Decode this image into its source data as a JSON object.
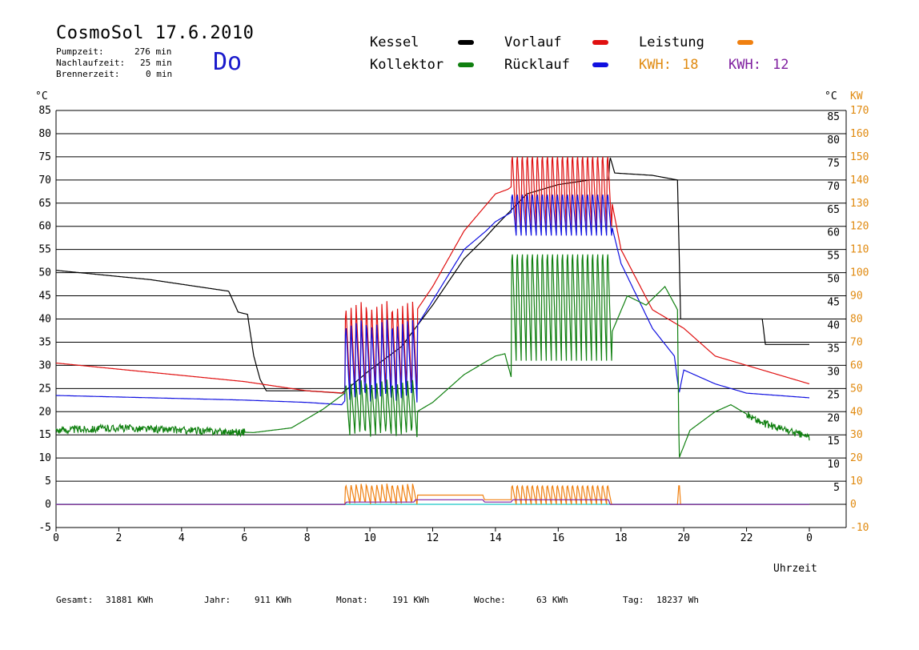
{
  "header": {
    "title": "CosmoSol 17.6.2010",
    "weekday": "Do",
    "stats": [
      {
        "label": "Pumpzeit:",
        "value": "276 min"
      },
      {
        "label": "Nachlaufzeit:",
        "value": "25 min"
      },
      {
        "label": "Brennerzeit:",
        "value": "0 min"
      }
    ]
  },
  "legend": {
    "kessel": {
      "label": "Kessel",
      "color": "#000000"
    },
    "vorlauf": {
      "label": "Vorlauf",
      "color": "#e01010"
    },
    "leistung": {
      "label": "Leistung",
      "color": "#f08010"
    },
    "kollektor": {
      "label": "Kollektor",
      "color": "#108010"
    },
    "ruecklauf": {
      "label": "Rücklauf",
      "color": "#1010e0"
    },
    "kwh_orange": {
      "label": "KWH:",
      "value": "18",
      "color": "#e08a10"
    },
    "kwh_purple": {
      "label": "KWH:",
      "value": "12",
      "color": "#8020a0"
    }
  },
  "footer": [
    {
      "label": "Gesamt:",
      "value": "31881 KWh"
    },
    {
      "label": "Jahr:",
      "value": "911 KWh"
    },
    {
      "label": "Monat:",
      "value": "191 KWh"
    },
    {
      "label": "Woche:",
      "value": "63 KWh"
    },
    {
      "label": "Tag:",
      "value": "18237 Wh"
    }
  ],
  "chart_data": {
    "type": "line",
    "xlabel": "Uhrzeit",
    "ylabel_left": "°C",
    "ylabel_right_temp": "°C",
    "ylabel_right_power": "KW",
    "xlim": [
      0,
      24
    ],
    "ylim": [
      -5,
      85
    ],
    "x_ticks": [
      "0",
      "2",
      "4",
      "6",
      "8",
      "10",
      "12",
      "14",
      "16",
      "18",
      "20",
      "22",
      "0"
    ],
    "y_ticks_left": [
      "85",
      "80",
      "75",
      "70",
      "65",
      "60",
      "55",
      "50",
      "45",
      "40",
      "35",
      "30",
      "25",
      "20",
      "15",
      "10",
      "5",
      "0",
      "-5"
    ],
    "y_ticks_right_temp": [
      "85",
      "80",
      "75",
      "70",
      "65",
      "60",
      "55",
      "50",
      "45",
      "40",
      "35",
      "30",
      "25",
      "20",
      "15",
      "10",
      "5"
    ],
    "y_ticks_right_power": [
      "170",
      "160",
      "150",
      "140",
      "130",
      "120",
      "110",
      "100",
      "90",
      "80",
      "70",
      "60",
      "50",
      "40",
      "30",
      "20",
      "10",
      "0",
      "-10"
    ],
    "grid": "horizontal",
    "reference_line": {
      "y": 0,
      "color": "#40d0d0"
    },
    "series": [
      {
        "name": "Kessel",
        "color": "#000000",
        "x": [
          0,
          3,
          5.5,
          5.8,
          6.1,
          6.3,
          6.5,
          6.7,
          8,
          9.1,
          9.3,
          10,
          11,
          12,
          13,
          13.6,
          14,
          15,
          16,
          17,
          17.6,
          17.65,
          17.8,
          19,
          19.8,
          19.9,
          20.5,
          22.5,
          22.6,
          24
        ],
        "y": [
          50.5,
          48.5,
          46,
          41.5,
          41,
          32,
          27,
          24.5,
          24.5,
          24,
          25,
          29,
          34,
          43,
          53,
          57,
          60,
          67,
          69,
          70,
          70,
          75,
          71.5,
          71,
          70,
          40,
          40,
          40,
          34.5,
          34.5
        ]
      },
      {
        "name": "Vorlauf",
        "color": "#e01010",
        "x": [
          0,
          3,
          6,
          8,
          9.2,
          9.7,
          10,
          11,
          11.5,
          12,
          13,
          14,
          14.4,
          15,
          15.6,
          16,
          17,
          17.6,
          18,
          19,
          20,
          21,
          22,
          24
        ],
        "y": [
          30.5,
          28.5,
          26.5,
          24.5,
          24,
          28,
          32,
          37,
          42,
          47,
          59,
          67,
          68,
          71,
          74,
          72,
          71,
          69,
          55,
          42,
          38,
          32,
          30,
          26
        ]
      },
      {
        "name": "Rücklauf",
        "color": "#1010e0",
        "x": [
          0,
          3,
          6,
          8,
          9.1,
          9.4,
          10,
          11,
          12,
          13,
          13.7,
          14,
          15,
          16,
          17,
          17.6,
          18,
          18.5,
          19,
          19.7,
          19.85,
          20,
          21,
          22,
          24
        ],
        "y": [
          23.5,
          23,
          22.5,
          22,
          21.5,
          24,
          28,
          33,
          44,
          55,
          59,
          61,
          65,
          66,
          64,
          63,
          52,
          45,
          38,
          32,
          24,
          29,
          26,
          24,
          23
        ]
      },
      {
        "name": "Kollektor",
        "color": "#108010",
        "x": [
          0,
          2,
          4,
          6.3,
          7.5,
          8.5,
          9.2,
          9.5,
          11,
          11.5,
          12,
          13,
          14,
          14.3,
          14.6,
          15,
          16,
          17,
          17.5,
          17.7,
          18.2,
          18.8,
          19.4,
          19.8,
          19.85,
          20.2,
          21,
          21.5,
          22.5,
          23.5,
          24
        ],
        "y": [
          16,
          16.5,
          16,
          15.5,
          16.5,
          20.5,
          24,
          18.5,
          18.5,
          20,
          22,
          28,
          32,
          32.5,
          25,
          35,
          35,
          35,
          37,
          37,
          45,
          43,
          47,
          42,
          10,
          16,
          20,
          21.5,
          17.5,
          15.5,
          14.5
        ]
      },
      {
        "name": "Leistung",
        "color": "#f08010",
        "x": [
          0,
          9.2,
          9.25,
          11.4,
          11.45,
          13.6,
          13.65,
          14.5,
          14.55,
          17.6,
          17.65,
          19.8,
          19.85,
          19.9,
          24
        ],
        "y": [
          0,
          0,
          1,
          1,
          2,
          2,
          1,
          1,
          2,
          2,
          0,
          0,
          5,
          0,
          0
        ]
      },
      {
        "name": "KWH 12",
        "color": "#8020a0",
        "x": [
          0,
          9.2,
          9.25,
          11.4,
          11.45,
          13.6,
          13.65,
          14.5,
          14.55,
          17.6,
          17.65,
          24
        ],
        "y": [
          0,
          0,
          0.5,
          0.5,
          1,
          1,
          0.5,
          0.5,
          1,
          1,
          0,
          0
        ]
      }
    ],
    "oscillations": [
      {
        "series": "Vorlauf",
        "x_start": 9.2,
        "x_end": 11.5,
        "peaks": 14,
        "low": 24,
        "high": 44
      },
      {
        "series": "Rücklauf",
        "x_start": 9.2,
        "x_end": 11.5,
        "peaks": 14,
        "low": 22,
        "high": 40
      },
      {
        "series": "Kollektor",
        "x_start": 9.2,
        "x_end": 11.5,
        "peaks": 14,
        "low": 14.5,
        "high": 27
      },
      {
        "series": "Vorlauf",
        "x_start": 14.5,
        "x_end": 17.7,
        "peaks": 20,
        "low": 60,
        "high": 77
      },
      {
        "series": "Rücklauf",
        "x_start": 14.5,
        "x_end": 17.7,
        "peaks": 20,
        "low": 58,
        "high": 68
      },
      {
        "series": "Kollektor",
        "x_start": 14.5,
        "x_end": 17.7,
        "peaks": 20,
        "low": 31,
        "high": 57
      },
      {
        "series": "Leistung",
        "x_start": 9.2,
        "x_end": 11.5,
        "peaks": 14,
        "low": 0,
        "high": 4.5
      },
      {
        "series": "Leistung",
        "x_start": 14.5,
        "x_end": 17.7,
        "peaks": 20,
        "low": 0,
        "high": 4.5
      }
    ]
  }
}
